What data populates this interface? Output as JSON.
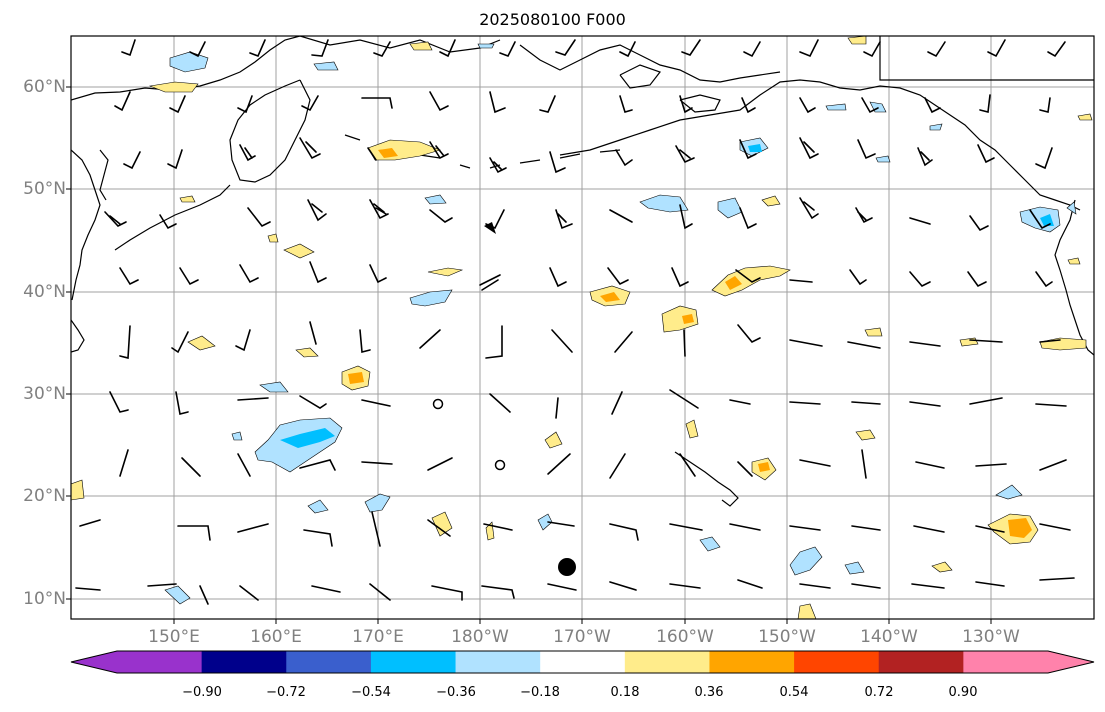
{
  "title": "2025080100 F000",
  "lat_labels": [
    "60°N",
    "50°N",
    "40°N",
    "30°N",
    "20°N",
    "10°N"
  ],
  "lon_labels": [
    "150°E",
    "160°E",
    "170°E",
    "180°W",
    "170°W",
    "160°W",
    "150°W",
    "140°W",
    "130°W"
  ],
  "colorbar": {
    "colors": [
      "#9932cc",
      "#00008b",
      "#3a5fcd",
      "#00bfff",
      "#b0e2ff",
      "#ffffff",
      "#ffec8b",
      "#ffa500",
      "#ff4500",
      "#b22222",
      "#ff82ab"
    ],
    "tick_labels": [
      "−0.90",
      "−0.72",
      "−0.54",
      "−0.36",
      "−0.18",
      "0.18",
      "0.36",
      "0.54",
      "0.72",
      "0.90"
    ]
  },
  "marker_label": ""
}
